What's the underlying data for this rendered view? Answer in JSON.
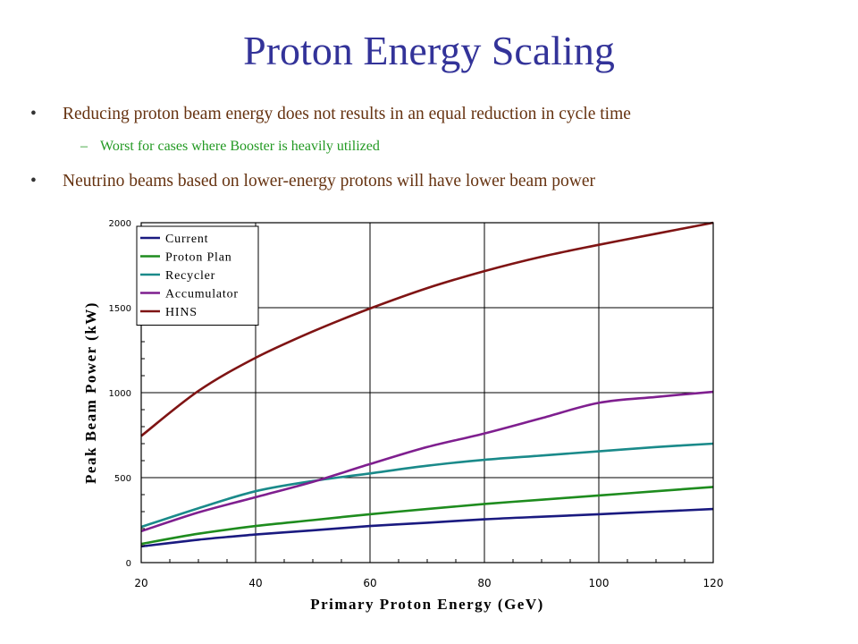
{
  "slide": {
    "title": "Proton Energy Scaling",
    "bullet1": "Reducing proton beam energy does not results in an equal reduction in cycle time",
    "sub1": "Worst for cases where Booster is heavily utilized",
    "bullet2": "Neutrino beams based on lower-energy protons will have lower beam power",
    "bullet_symbol": "•",
    "dash_symbol": "–"
  },
  "chart_data": {
    "type": "line",
    "xlabel": "Primary Proton Energy (GeV)",
    "ylabel": "Peak Beam Power (kW)",
    "xlim": [
      20,
      120
    ],
    "ylim": [
      0,
      2000
    ],
    "xticks": [
      20,
      40,
      60,
      80,
      100,
      120
    ],
    "yticks": [
      0,
      500,
      1000,
      1500,
      2000
    ],
    "grid": true,
    "legend": "top-left",
    "x": [
      20,
      30,
      40,
      50,
      60,
      70,
      80,
      90,
      100,
      110,
      120
    ],
    "series": [
      {
        "name": "Current",
        "color": "#1a1a80",
        "values": [
          95,
          135,
          165,
          190,
          215,
          235,
          255,
          270,
          285,
          300,
          315
        ]
      },
      {
        "name": "Proton Plan",
        "color": "#1e8c1e",
        "values": [
          110,
          170,
          215,
          250,
          285,
          315,
          345,
          370,
          395,
          420,
          445
        ]
      },
      {
        "name": "Recycler",
        "color": "#1a8a8a",
        "values": [
          210,
          320,
          420,
          480,
          525,
          570,
          605,
          630,
          655,
          680,
          700
        ]
      },
      {
        "name": "Accumulator",
        "color": "#7f1f8f",
        "values": [
          185,
          295,
          385,
          475,
          580,
          680,
          760,
          850,
          940,
          975,
          1005
        ]
      },
      {
        "name": "HINS",
        "color": "#7f1414",
        "values": [
          745,
          1010,
          1205,
          1360,
          1495,
          1615,
          1715,
          1800,
          1870,
          1935,
          2000
        ]
      }
    ]
  }
}
